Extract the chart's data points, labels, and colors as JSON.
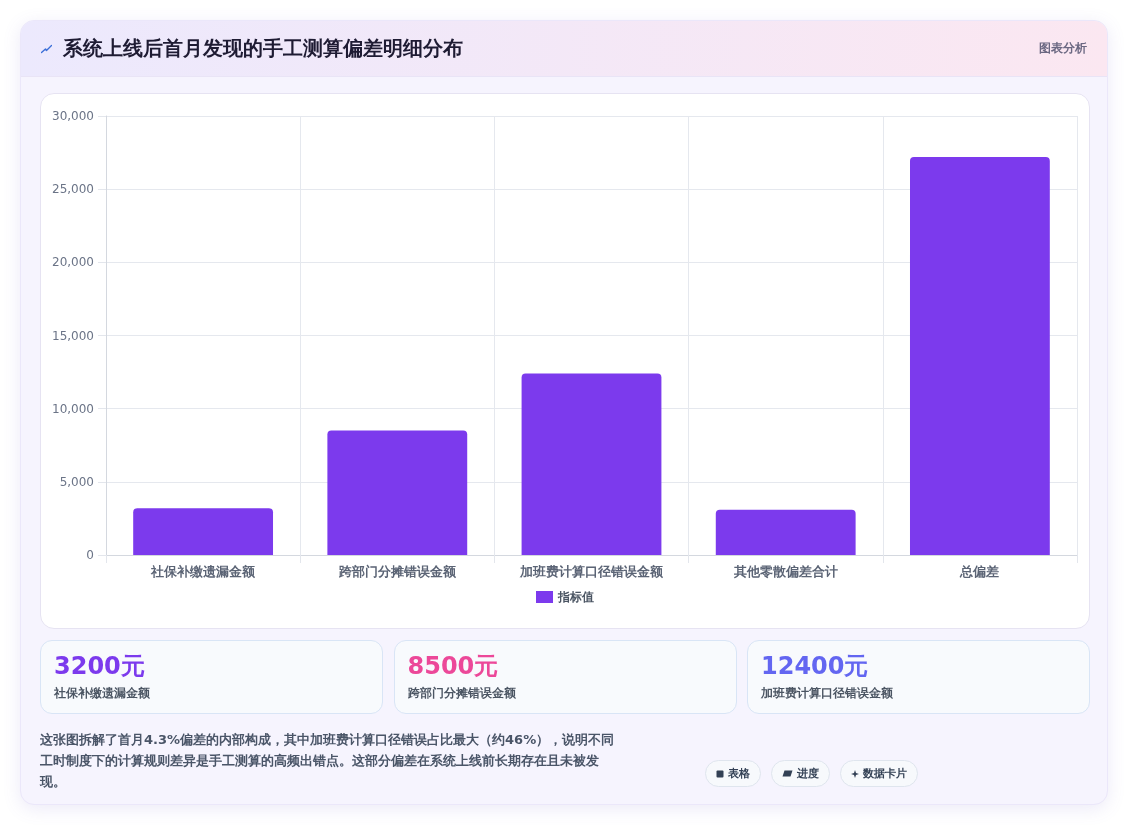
{
  "chart_data": [
    {
      "type": "bar",
      "title": "系统上线后首月发现的手工测算偏差明细分布",
      "categories": [
        "社保补缴遗漏金额",
        "跨部门分摊错误金额",
        "加班费计算口径错误金额",
        "其他零散偏差合计",
        "总偏差"
      ],
      "series": [
        {
          "name": "指标值",
          "color": "#7c3aed",
          "values": [
            3200,
            8500,
            12400,
            3100,
            27200
          ]
        }
      ],
      "ylim": [
        0,
        30000
      ],
      "yticks": [
        0,
        {
          "value": 5000,
          "label": "5,000"
        },
        {
          "value": 10000,
          "label": "10,000"
        },
        {
          "value": 15000,
          "label": "15,000"
        },
        {
          "value": 20000,
          "label": "20,000"
        },
        {
          "value": 25000,
          "label": "25,000"
        },
        {
          "value": 30000,
          "label": "30,000"
        }
      ],
      "grid": true,
      "legend": "bottom",
      "annotations": [
        "图表分析",
        "这张图拆解了首月4.3%偏差的内部构成，其中加班费计算口径错误占比最大（约46%），说明不同工时制度下的计算规则差异是手工测算的高频出错点。这部分偏差在系统上线前长期存在且未被发现。",
        "表格",
        "进度",
        "数据卡片"
      ]
    },
    {
      "type": "other",
      "categories": [
        "社保补缴遗漏金额",
        "跨部门分摊错误金额",
        "加班费计算口径错误金额"
      ],
      "value_labels": [
        "3200元",
        "8500元",
        "12400元"
      ]
    }
  ]
}
